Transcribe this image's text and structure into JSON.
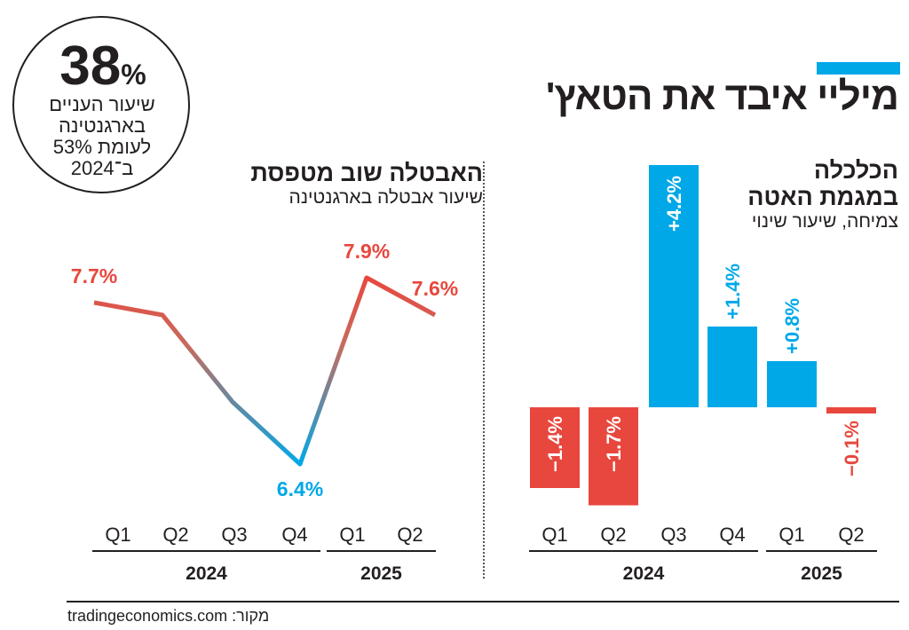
{
  "title": "מיליי איבד את הטאץ'",
  "callout": {
    "value": "38",
    "unit": "%",
    "lines": [
      "שיעור העניים",
      "בארגנטינה",
      "לעומת 53%",
      "ב־2024"
    ]
  },
  "source": "מקור: tradingeconomics.com",
  "colors": {
    "accent": "#00a8e8",
    "positive": "#00a8e8",
    "negative": "#e8473e",
    "text": "#231f20"
  },
  "chart_data": [
    {
      "type": "line",
      "title": "האבטלה שוב מטפסת",
      "subtitle": "שיעור אבטלה בארגנטינה",
      "categories": [
        "Q1",
        "Q2",
        "Q3",
        "Q4",
        "Q1",
        "Q2"
      ],
      "groups": [
        {
          "label": "2024",
          "count": 4
        },
        {
          "label": "2025",
          "count": 2
        }
      ],
      "values": [
        7.7,
        7.6,
        6.9,
        6.4,
        7.9,
        7.6
      ],
      "data_labels": [
        "7.7%",
        null,
        null,
        "6.4%",
        "7.9%",
        "7.6%"
      ],
      "unit": "%",
      "grid": false
    },
    {
      "type": "bar",
      "title": "הכלכלה במגמת האטה",
      "subtitle": "צמיחה, שיעור שינוי",
      "categories": [
        "Q1",
        "Q2",
        "Q3",
        "Q4",
        "Q1",
        "Q2"
      ],
      "groups": [
        {
          "label": "2024",
          "count": 4
        },
        {
          "label": "2025",
          "count": 2
        }
      ],
      "values": [
        -1.4,
        -1.7,
        4.2,
        1.4,
        0.8,
        -0.1
      ],
      "data_labels": [
        "−1.4%",
        "−1.7%",
        "+4.2%",
        "+1.4%",
        "+0.8%",
        "−0.1%"
      ],
      "unit": "%",
      "grid": false
    }
  ]
}
